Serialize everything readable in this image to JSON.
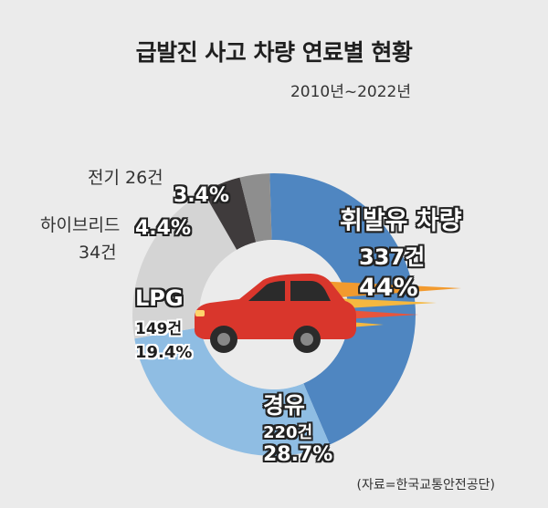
{
  "title": "급발진 사고 차량 연료별 현황",
  "subtitle": "2010년~2022년",
  "source": "(자료=한국교통안전공단)",
  "colors": {
    "gasoline": "#4f86c1",
    "diesel": "#8fbde3",
    "lpg": "#d4d4d4",
    "hybrid": "#3f3b3c",
    "electric": "#8e8e8e",
    "car": "#d9362c",
    "flame": "#f5a623"
  },
  "chart_data": {
    "type": "pie",
    "title": "급발진 사고 차량 연료별 현황",
    "subtitle": "2010년~2022년",
    "slices": [
      {
        "name": "휘발유 차량",
        "count": 337,
        "count_label": "337건",
        "percent": 44,
        "percent_label": "44%"
      },
      {
        "name": "경유",
        "count": 220,
        "count_label": "220건",
        "percent": 28.7,
        "percent_label": "28.7%"
      },
      {
        "name": "LPG",
        "count": 149,
        "count_label": "149건",
        "percent": 19.4,
        "percent_label": "19.4%"
      },
      {
        "name": "하이브리드",
        "count": 34,
        "count_label": "34건",
        "percent": 4.4,
        "percent_label": "4.4%"
      },
      {
        "name": "전기",
        "count": 26,
        "count_label": "26건",
        "percent": 3.4,
        "percent_label": "3.4%"
      }
    ],
    "hybrid_name_line1": "하이브리드",
    "electric_full_label": "전기 26건"
  }
}
